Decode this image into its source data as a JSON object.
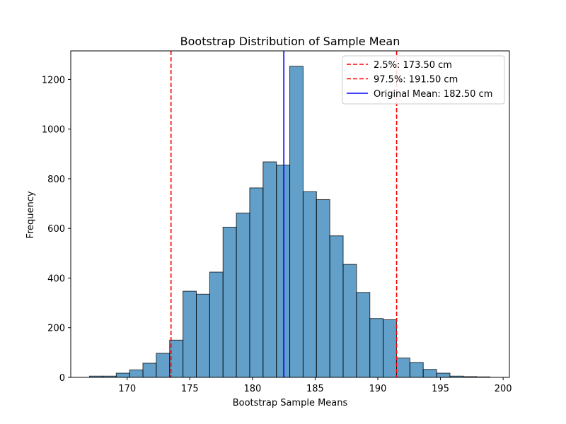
{
  "chart_data": {
    "type": "bar",
    "title": "Bootstrap Distribution of Sample Mean",
    "xlabel": "Bootstrap Sample Means",
    "ylabel": "Frequency",
    "xlim": [
      165.5,
      200.5
    ],
    "ylim": [
      0,
      1315
    ],
    "x_ticks": [
      170,
      175,
      180,
      185,
      190,
      195,
      200
    ],
    "y_ticks": [
      0,
      200,
      400,
      600,
      800,
      1000,
      1200
    ],
    "bins": {
      "start": 167.0,
      "width": 1.065,
      "counts": [
        5,
        5,
        17,
        30,
        57,
        97,
        150,
        347,
        335,
        424,
        605,
        662,
        763,
        868,
        855,
        1253,
        748,
        716,
        570,
        455,
        342,
        237,
        232,
        78,
        60,
        32,
        17,
        5,
        3,
        2
      ]
    },
    "bar_color": "#1f77b4",
    "reference_lines": [
      {
        "label": "2.5%: 173.50 cm",
        "x": 173.5,
        "color": "#ff0000",
        "style": "dashed"
      },
      {
        "label": "97.5%: 191.50 cm",
        "x": 191.5,
        "color": "#ff0000",
        "style": "dashed"
      },
      {
        "label": "Original Mean: 182.50 cm",
        "x": 182.5,
        "color": "#0000ff",
        "style": "solid"
      }
    ],
    "legend_position": "top-right",
    "grid": false
  }
}
